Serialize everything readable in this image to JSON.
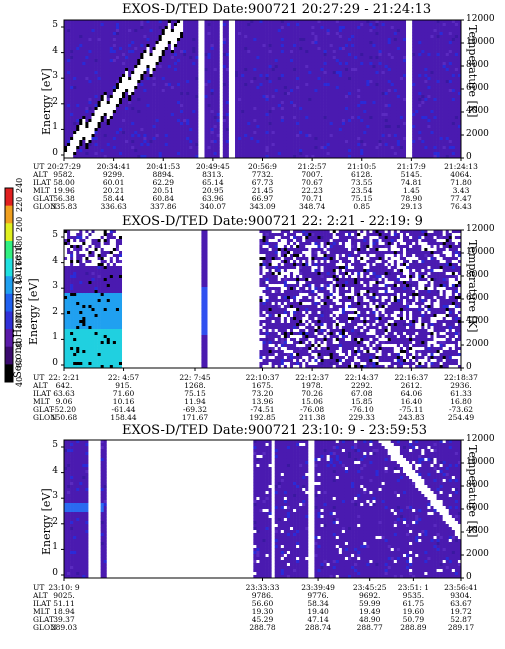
{
  "chart_data": [
    {
      "type": "heatmap",
      "title": "EXOS-D/TED   Date:900721  20:27:29 - 21:24:13",
      "ylabel": "Energy [eV]",
      "ylabel_right": "Temperature [K]",
      "y_ticks": [
        "0",
        "1",
        "2",
        "3",
        "4",
        "5"
      ],
      "y_right_ticks": [
        "0",
        "2000",
        "4000",
        "6000",
        "8000",
        "10000",
        "12000"
      ],
      "ylim": [
        0,
        5
      ],
      "ylim_right": [
        0,
        12000
      ],
      "ephemeris": {
        "rows": [
          "UT",
          "ALT",
          "ILAT",
          "MLT",
          "GLAT",
          "GLON"
        ],
        "columns": [
          [
            "20:27:29",
            "9582.",
            "58.00",
            "19.96",
            "56.38",
            "335.83"
          ],
          [
            "20:34:41",
            "9299.",
            "60.01",
            "20.21",
            "58.44",
            "336.63"
          ],
          [
            "20:41:53",
            "8894.",
            "62.29",
            "20.51",
            "60.84",
            "337.86"
          ],
          [
            "20:49:45",
            "8313.",
            "65.14",
            "20.95",
            "63.96",
            "340.07"
          ],
          [
            "20:56:9",
            "7732.",
            "67.73",
            "21.45",
            "66.97",
            "343.09"
          ],
          [
            "21:2:57",
            "7007.",
            "70.67",
            "22.23",
            "70.71",
            "348.74"
          ],
          [
            "21:10:5",
            "6128.",
            "73.55",
            "23.54",
            "75.15",
            "0.85"
          ],
          [
            "21:17:9",
            "5145.",
            "74.81",
            "1.45",
            "78.90",
            "29.13"
          ],
          [
            "21:24:13",
            "4064.",
            "71.80",
            "3.43",
            "77.47",
            "76.43"
          ]
        ]
      }
    },
    {
      "type": "heatmap",
      "title": "EXOS-D/TED   Date:900721  22: 2:21 - 22:19: 9",
      "ylabel": "Energy [eV]",
      "ylabel_right": "Temperature [K]",
      "y_ticks": [
        "0",
        "1",
        "2",
        "3",
        "4",
        "5"
      ],
      "y_right_ticks": [
        "0",
        "2000",
        "4000",
        "6000",
        "8000",
        "10000",
        "12000"
      ],
      "ylim": [
        0,
        5
      ],
      "ylim_right": [
        0,
        12000
      ],
      "ephemeris": {
        "rows": [
          "UT",
          "ALT",
          "ILAT",
          "MLT",
          "GLAT",
          "GLON"
        ],
        "columns": [
          [
            "22: 2:21",
            "642.",
            "63.63",
            "9.06",
            "-52.20",
            "150.68"
          ],
          [
            "22: 4:57",
            "915.",
            "71.60",
            "10.16",
            "-61.44",
            "158.44"
          ],
          [
            "22: 7:45",
            "1268.",
            "75.15",
            "11.94",
            "-69.32",
            "171.67"
          ],
          [
            "22:10:37",
            "1675.",
            "73.20",
            "13.96",
            "-74.51",
            "192.85"
          ],
          [
            "22:12:37",
            "1978.",
            "70.26",
            "15.06",
            "-76.08",
            "211.38"
          ],
          [
            "22:14:37",
            "2292.",
            "67.08",
            "15.85",
            "-76.10",
            "229.33"
          ],
          [
            "22:16:37",
            "2612.",
            "64.06",
            "16.40",
            "-75.11",
            "243.83"
          ],
          [
            "22:18:37",
            "2936.",
            "61.33",
            "16.80",
            "-73.62",
            "254.49"
          ]
        ]
      }
    },
    {
      "type": "heatmap",
      "title": "EXOS-D/TED   Date:900721  23:10: 9 - 23:59:53",
      "ylabel": "Energy [eV]",
      "ylabel_right": "Temperature [K]",
      "y_ticks": [
        "0",
        "1",
        "2",
        "3",
        "4",
        "5"
      ],
      "y_right_ticks": [
        "0",
        "2000",
        "4000",
        "6000",
        "8000",
        "10000",
        "12000"
      ],
      "ylim": [
        0,
        5
      ],
      "ylim_right": [
        0,
        12000
      ],
      "ephemeris": {
        "rows": [
          "UT",
          "ALT",
          "ILAT",
          "MLT",
          "GLAT",
          "GLON"
        ],
        "columns": [
          [
            "23:10: 9",
            "9025.",
            "51.11",
            "18.94",
            "39.37",
            "289.03"
          ],
          [
            "23:33:33",
            "9786.",
            "56.60",
            "19.30",
            "45.29",
            "288.78"
          ],
          [
            "23:39:49",
            "9776.",
            "58.34",
            "19.40",
            "47.14",
            "288.74"
          ],
          [
            "23:45:25",
            "9692.",
            "59.99",
            "19.49",
            "48.90",
            "288.77"
          ],
          [
            "23:51: 1",
            "9535.",
            "61.75",
            "19.60",
            "50.79",
            "288.89"
          ],
          [
            "23:56:41",
            "9304.",
            "63.67",
            "19.72",
            "52.87",
            "289.17"
          ]
        ]
      }
    }
  ],
  "colorbar": {
    "label": "Second Harmonic Current",
    "ticks": [
      "40",
      "60",
      "80",
      "100",
      "120",
      "140",
      "160",
      "180",
      "200",
      "220",
      "240"
    ],
    "colors": [
      "#000000",
      "#3a0a6e",
      "#5a1aa8",
      "#3030d8",
      "#2060f0",
      "#20a0f0",
      "#20e0e0",
      "#30f080",
      "#e0f020",
      "#f0a020",
      "#e02020"
    ]
  }
}
